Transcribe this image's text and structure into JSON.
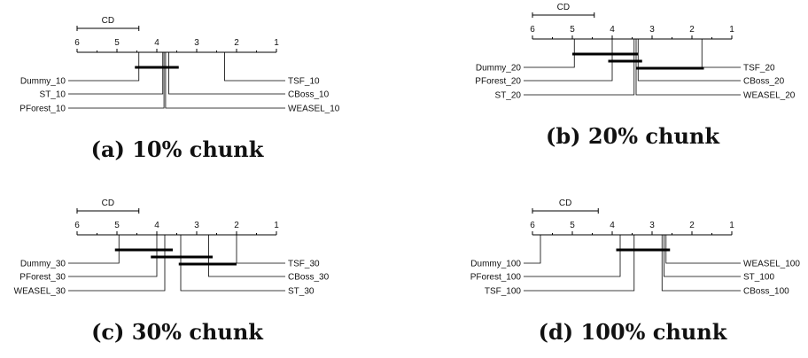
{
  "chart_data": [
    {
      "type": "critical-difference",
      "caption": "(a) 10% chunk",
      "cd_label": "CD",
      "cd_value": 1.55,
      "axis": {
        "range": [
          6,
          1
        ],
        "ticks": [
          "6",
          "5",
          "4",
          "3",
          "2",
          "1"
        ]
      },
      "methods": [
        {
          "name": "Dummy_10",
          "rank": 4.45,
          "side": "left",
          "row": 0
        },
        {
          "name": "ST_10",
          "rank": 3.85,
          "side": "left",
          "row": 1
        },
        {
          "name": "PForest_10",
          "rank": 3.82,
          "side": "left",
          "row": 2
        },
        {
          "name": "TSF_10",
          "rank": 2.3,
          "side": "right",
          "row": 0
        },
        {
          "name": "CBoss_10",
          "rank": 3.7,
          "side": "right",
          "row": 1
        },
        {
          "name": "WEASEL_10",
          "rank": 3.78,
          "side": "right",
          "row": 2
        }
      ],
      "cliques": [
        {
          "from": 4.55,
          "to": 3.45
        }
      ]
    },
    {
      "type": "critical-difference",
      "caption": "(b) 20% chunk",
      "cd_label": "CD",
      "cd_value": 1.55,
      "axis": {
        "range": [
          6,
          1
        ],
        "ticks": [
          "6",
          "5",
          "4",
          "3",
          "2",
          "1"
        ]
      },
      "methods": [
        {
          "name": "Dummy_20",
          "rank": 4.95,
          "side": "left",
          "row": 0
        },
        {
          "name": "PForest_20",
          "rank": 4.0,
          "side": "left",
          "row": 1
        },
        {
          "name": "ST_20",
          "rank": 3.45,
          "side": "left",
          "row": 2
        },
        {
          "name": "TSF_20",
          "rank": 1.75,
          "side": "right",
          "row": 0
        },
        {
          "name": "CBoss_20",
          "rank": 3.35,
          "side": "right",
          "row": 1
        },
        {
          "name": "WEASEL_20",
          "rank": 3.4,
          "side": "right",
          "row": 2
        }
      ],
      "cliques": [
        {
          "from": 5.0,
          "to": 3.35
        },
        {
          "from": 4.1,
          "to": 3.25
        },
        {
          "from": 3.4,
          "to": 1.7
        }
      ]
    },
    {
      "type": "critical-difference",
      "caption": "(c) 30% chunk",
      "cd_label": "CD",
      "cd_value": 1.55,
      "axis": {
        "range": [
          6,
          1
        ],
        "ticks": [
          "6",
          "5",
          "4",
          "3",
          "2",
          "1"
        ]
      },
      "methods": [
        {
          "name": "Dummy_30",
          "rank": 4.95,
          "side": "left",
          "row": 0
        },
        {
          "name": "PForest_30",
          "rank": 4.0,
          "side": "left",
          "row": 1
        },
        {
          "name": "WEASEL_30",
          "rank": 3.8,
          "side": "left",
          "row": 2
        },
        {
          "name": "TSF_30",
          "rank": 2.0,
          "side": "right",
          "row": 0
        },
        {
          "name": "CBoss_30",
          "rank": 2.7,
          "side": "right",
          "row": 1
        },
        {
          "name": "ST_30",
          "rank": 3.4,
          "side": "right",
          "row": 2
        }
      ],
      "cliques": [
        {
          "from": 5.05,
          "to": 3.6
        },
        {
          "from": 4.15,
          "to": 2.6
        },
        {
          "from": 3.45,
          "to": 2.0
        }
      ]
    },
    {
      "type": "critical-difference",
      "caption": "(d) 100% chunk",
      "cd_label": "CD",
      "cd_value": 1.65,
      "axis": {
        "range": [
          6,
          1
        ],
        "ticks": [
          "6",
          "5",
          "4",
          "3",
          "2",
          "1"
        ]
      },
      "methods": [
        {
          "name": "Dummy_100",
          "rank": 5.8,
          "side": "left",
          "row": 0
        },
        {
          "name": "PForest_100",
          "rank": 3.8,
          "side": "left",
          "row": 1
        },
        {
          "name": "TSF_100",
          "rank": 3.45,
          "side": "left",
          "row": 2
        },
        {
          "name": "WEASEL_100",
          "rank": 2.65,
          "side": "right",
          "row": 0
        },
        {
          "name": "ST_100",
          "rank": 2.7,
          "side": "right",
          "row": 1
        },
        {
          "name": "CBoss_100",
          "rank": 2.75,
          "side": "right",
          "row": 2
        }
      ],
      "cliques": [
        {
          "from": 3.9,
          "to": 2.55
        }
      ]
    }
  ]
}
